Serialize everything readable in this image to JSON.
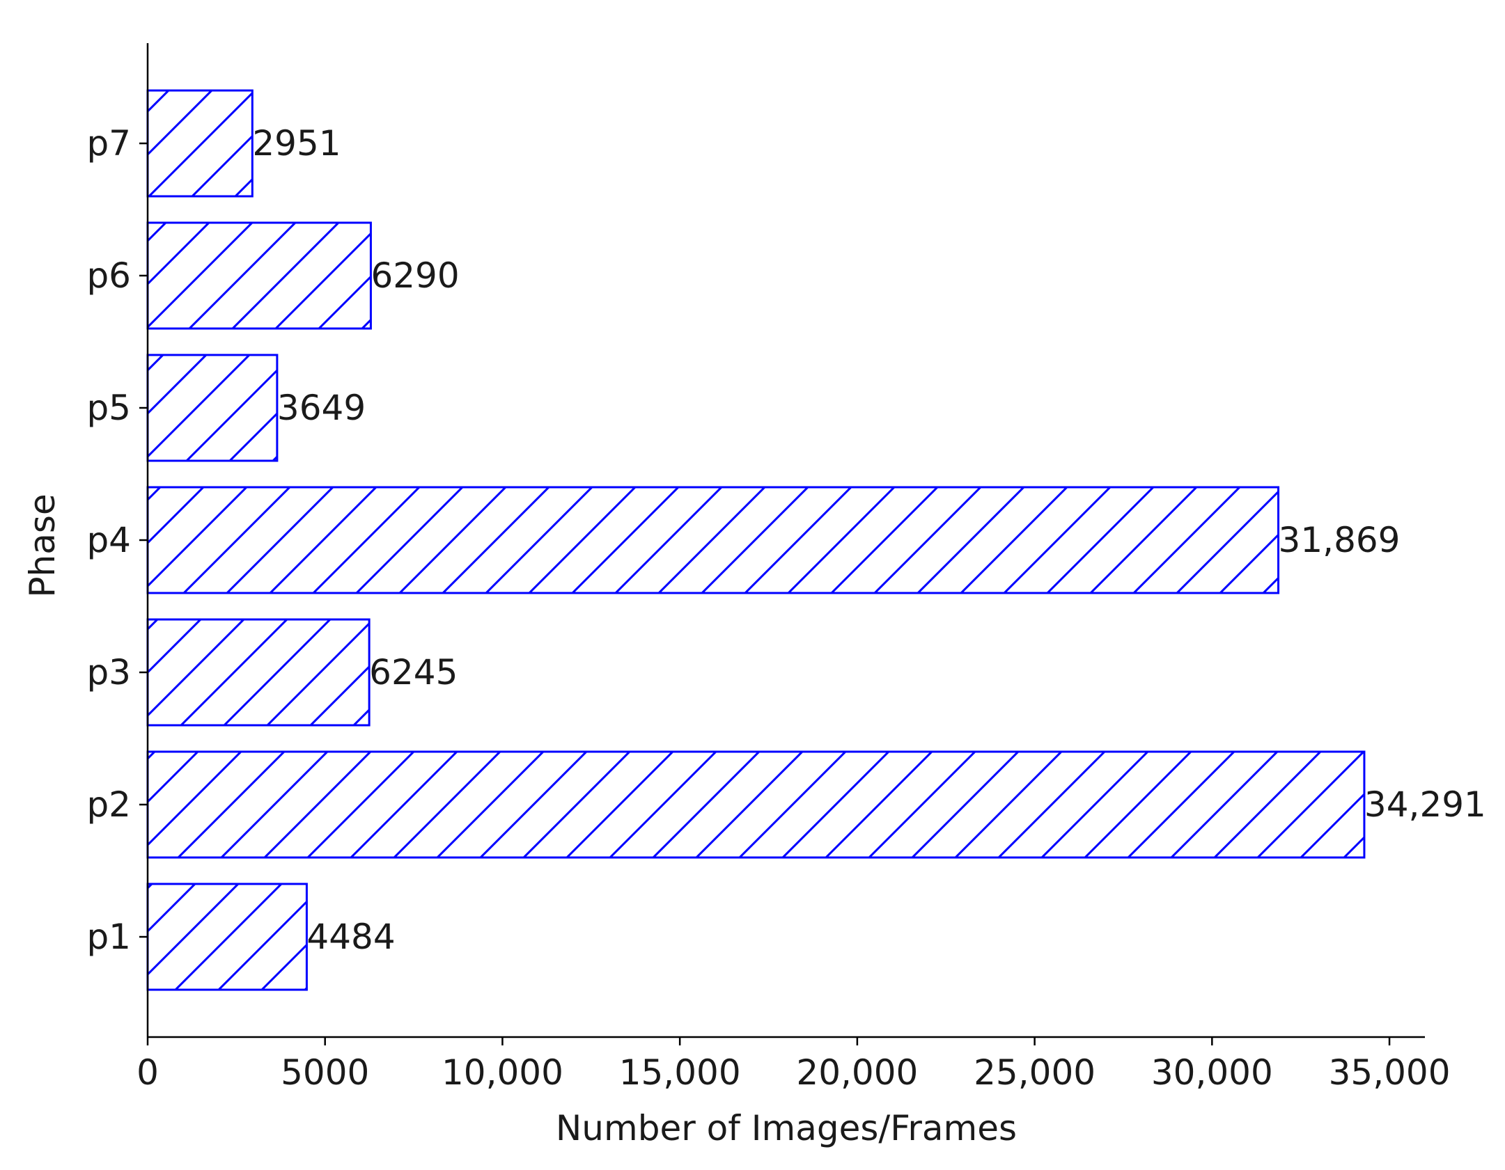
{
  "chart_data": {
    "type": "bar",
    "orientation": "horizontal",
    "categories": [
      "p1",
      "p2",
      "p3",
      "p4",
      "p5",
      "p6",
      "p7"
    ],
    "values": [
      4484,
      34291,
      6245,
      31869,
      3649,
      6290,
      2951
    ],
    "data_labels": [
      "4484",
      "34,291",
      "6245",
      "31,869",
      "3649",
      "6290",
      "2951"
    ],
    "xlabel": "Number of Images/Frames",
    "ylabel": "Phase",
    "xlim": [
      0,
      36000
    ],
    "xticks": [
      0,
      5000,
      10000,
      15000,
      20000,
      25000,
      30000,
      35000
    ],
    "xtick_labels": [
      "0",
      "5000",
      "10,000",
      "15,000",
      "20,000",
      "25,000",
      "30,000",
      "35,000"
    ],
    "grid": false,
    "legend": "none",
    "bar_style": {
      "fill": "#ffffff",
      "edge_color": "#0000ff",
      "hatch": "diagonal"
    }
  }
}
